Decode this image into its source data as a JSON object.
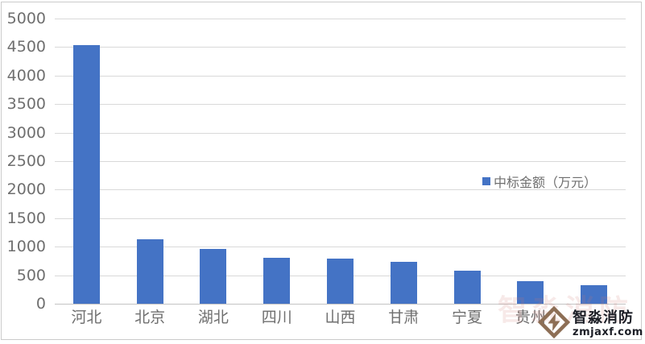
{
  "chart_data": {
    "type": "bar",
    "title": "",
    "categories": [
      "河北",
      "北京",
      "湖北",
      "四川",
      "山西",
      "甘肃",
      "宁夏",
      "贵州",
      ""
    ],
    "values": [
      4530,
      1130,
      960,
      810,
      790,
      740,
      580,
      400,
      330
    ],
    "series_name": "中标金额（万元）",
    "xlabel": "",
    "ylabel": "",
    "ylim": [
      0,
      5000
    ],
    "yticks": [
      0,
      500,
      1000,
      1500,
      2000,
      2500,
      3000,
      3500,
      4000,
      4500,
      5000
    ],
    "grid": true,
    "legend_position": "right-middle",
    "bar_color": "#4473c5"
  },
  "legend": {
    "label": "中标金额（万元）",
    "swatch_color": "#4473c5"
  },
  "watermark": {
    "brand": "智淼消防",
    "site": "zmjaxf.com",
    "faint_text": "智淼消防",
    "logo": "diamond-lightning-icon",
    "logo_color": "#8d6e55"
  },
  "colors": {
    "bar": "#4473c5",
    "gridline": "#d9d9d9",
    "axis_line": "#c3c3c3",
    "tick_text": "#6f6f6f",
    "frame_border": "#cbcbcb",
    "background": "#ffffff"
  }
}
